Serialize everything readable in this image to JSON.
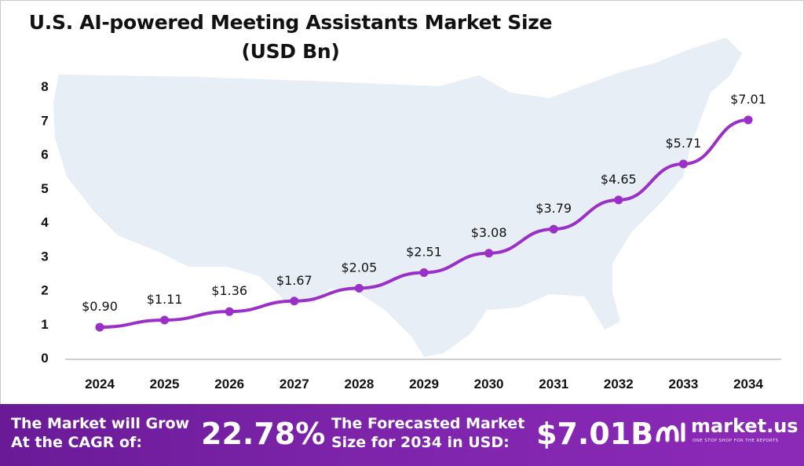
{
  "title": {
    "line1": "U.S. AI-powered Meeting Assistants Market Size",
    "line2": "(USD Bn)"
  },
  "chart_data": {
    "type": "line",
    "title": "U.S. AI-powered Meeting Assistants Market Size (USD Bn)",
    "categories": [
      "2024",
      "2025",
      "2026",
      "2027",
      "2028",
      "2029",
      "2030",
      "2031",
      "2032",
      "2033",
      "2034"
    ],
    "series": [
      {
        "values": [
          0.9,
          1.11,
          1.36,
          1.67,
          2.05,
          2.51,
          3.08,
          3.79,
          4.65,
          5.71,
          7.01
        ],
        "labels": [
          "$0.90",
          "$1.11",
          "$1.36",
          "$1.67",
          "$2.05",
          "$2.51",
          "$3.08",
          "$3.79",
          "$4.65",
          "$5.71",
          "$7.01"
        ]
      }
    ],
    "yticks": [
      "0",
      "1",
      "2",
      "3",
      "4",
      "5",
      "6",
      "7",
      "8"
    ],
    "ylim": [
      0,
      8
    ],
    "grid": false,
    "line_color": "#9b30c9",
    "xlabel": "",
    "ylabel": ""
  },
  "footer": {
    "cagr_line1": "The Market will Grow",
    "cagr_line2": "At the CAGR of:",
    "cagr_value": "22.78%",
    "forecast_line1": "The Forecasted Market",
    "forecast_line2": "Size for 2034 in USD:",
    "forecast_value": "$7.01B",
    "brand_name": "market.us",
    "brand_tagline": "ONE STOP SHOP FOR THE REPORTS",
    "background_color": "#7d24ab"
  },
  "background_icon": "us-map-silhouette"
}
